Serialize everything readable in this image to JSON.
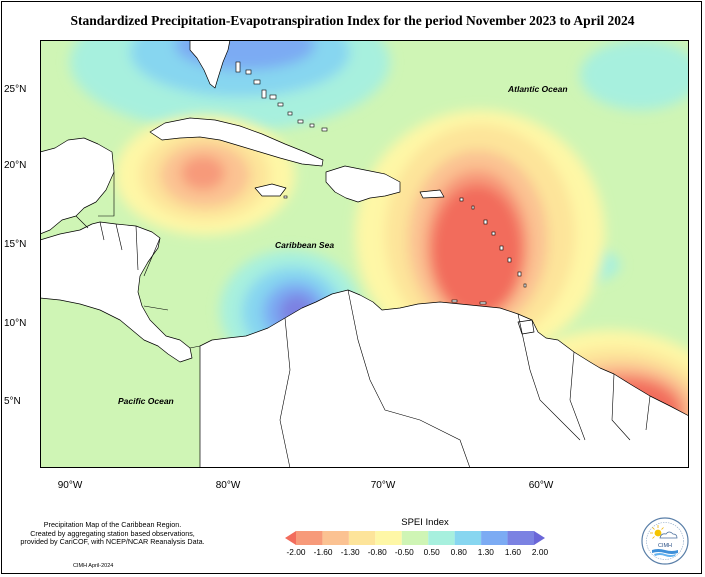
{
  "title": "Standardized Precipitation-Evapotranspiration Index for the period November 2023 to April 2024",
  "map": {
    "latitude_labels": [
      "25°N",
      "20°N",
      "15°N",
      "10°N",
      "5°N"
    ],
    "longitude_labels": [
      "90°W",
      "80°W",
      "70°W",
      "60°W"
    ],
    "ocean_labels": {
      "atlantic": "Atlantic Ocean",
      "caribbean": "Caribbean Sea",
      "pacific": "Pacific Ocean"
    },
    "colors": {
      "ocean_base": "#cff5b5",
      "land": "#ffffff",
      "coastline": "#000000"
    }
  },
  "legend": {
    "title": "SPEI Index",
    "ticks": [
      "-2.00",
      "-1.60",
      "-1.30",
      "-0.80",
      "-0.50",
      "0.50",
      "0.80",
      "1.30",
      "1.60",
      "2.00"
    ],
    "colors": [
      "#f26c5c",
      "#f79a7a",
      "#fbc292",
      "#fde49a",
      "#fef7a6",
      "#cff5b5",
      "#a7f0de",
      "#87d6f0",
      "#7cabf3",
      "#7b82e2",
      "#6a66d8"
    ]
  },
  "footer": {
    "line1": "Precipitation Map of the Caribbean Region.",
    "line2": "Created by aggregating station based observations,",
    "line3": "provided by CariCOF, with NCEP/NCAR Reanalysis Data.",
    "date": "CIMH April-2024"
  },
  "logo": {
    "text": "CIMH",
    "icon": "cimh-sun-cloud-logo-icon"
  }
}
